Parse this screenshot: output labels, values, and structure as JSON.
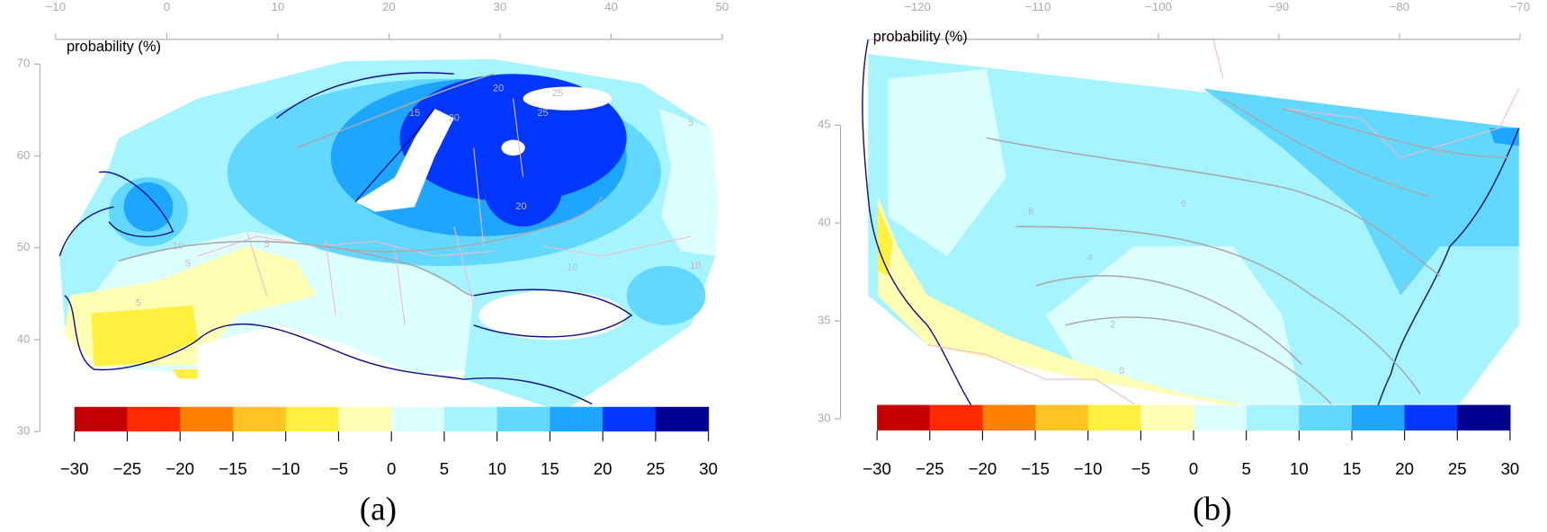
{
  "panels": [
    {
      "caption": "(a)",
      "legend_title": "probability (%)",
      "x_ticks": [
        "−10",
        "0",
        "10",
        "20",
        "30",
        "40",
        "50"
      ],
      "y_ticks": [
        "30",
        "40",
        "50",
        "60",
        "70"
      ],
      "colorbar": {
        "ticks": [
          "−30",
          "−25",
          "−20",
          "−15",
          "−10",
          "−5",
          "0",
          "5",
          "10",
          "15",
          "20",
          "25",
          "30"
        ],
        "colors": [
          "#c40000",
          "#ff2a00",
          "#ff7f00",
          "#ffc326",
          "#fff040",
          "#ffffb4",
          "#dcffff",
          "#a6f4ff",
          "#62d8ff",
          "#1ea6ff",
          "#0036ff",
          "#000090"
        ]
      },
      "contour_labels": [
        "5",
        "10",
        "15",
        "20",
        "25",
        "25",
        "20",
        "20",
        "10",
        "5",
        "5",
        "5",
        "10"
      ]
    },
    {
      "caption": "(b)",
      "legend_title": "probability (%)",
      "x_ticks": [
        "−120",
        "−110",
        "−100",
        "−90",
        "−80",
        "−70"
      ],
      "y_ticks": [
        "30",
        "35",
        "40",
        "45"
      ],
      "colorbar": {
        "ticks": [
          "−30",
          "−25",
          "−20",
          "−15",
          "−10",
          "−5",
          "0",
          "5",
          "10",
          "15",
          "20",
          "25",
          "30"
        ],
        "colors": [
          "#c40000",
          "#ff2a00",
          "#ff7f00",
          "#ffc326",
          "#fff040",
          "#ffffb4",
          "#dcffff",
          "#a6f4ff",
          "#62d8ff",
          "#1ea6ff",
          "#0036ff",
          "#000090"
        ]
      },
      "contour_labels": [
        "6",
        "4",
        "2",
        "0",
        "8",
        "10",
        "12",
        "6"
      ]
    }
  ]
}
